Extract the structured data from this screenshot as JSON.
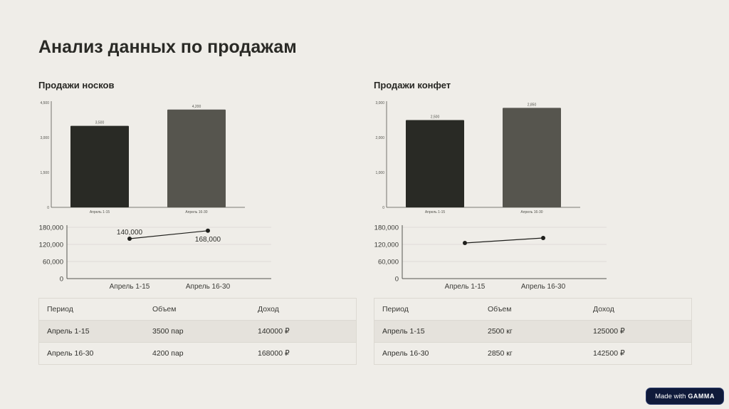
{
  "page": {
    "title": "Анализ данных по продажам"
  },
  "panels": [
    {
      "title": "Продажи носков",
      "bar_chart": {
        "y_ticks": [
          "4,500",
          "3,000",
          "1,500",
          "0"
        ],
        "categories": [
          "Апрель 1-15",
          "Апрель 16-30"
        ],
        "value_labels": [
          "3,500",
          "4,200"
        ]
      },
      "line_chart": {
        "y_ticks": [
          "180,000",
          "120,000",
          "60,000",
          "0"
        ],
        "categories": [
          "Апрель 1-15",
          "Апрель 16-30"
        ],
        "point_labels": [
          "140,000",
          "168,000"
        ]
      },
      "table": {
        "headers": [
          "Период",
          "Объем",
          "Доход"
        ],
        "rows": [
          [
            "Апрель 1-15",
            "3500 пар",
            "140000 ₽"
          ],
          [
            "Апрель 16-30",
            "4200 пар",
            "168000 ₽"
          ]
        ]
      }
    },
    {
      "title": "Продажи конфет",
      "bar_chart": {
        "y_ticks": [
          "3,000",
          "2,000",
          "1,000",
          "0"
        ],
        "categories": [
          "Апрель 1-15",
          "Апрель 16-30"
        ],
        "value_labels": [
          "2,500",
          "2,850"
        ]
      },
      "line_chart": {
        "y_ticks": [
          "180,000",
          "120,000",
          "60,000",
          "0"
        ],
        "categories": [
          "Апрель 1-15",
          "Апрель 16-30"
        ]
      },
      "table": {
        "headers": [
          "Период",
          "Объем",
          "Доход"
        ],
        "rows": [
          [
            "Апрель 1-15",
            "2500 кг",
            "125000 ₽"
          ],
          [
            "Апрель 16-30",
            "2850 кг",
            "142500 ₽"
          ]
        ]
      }
    }
  ],
  "chart_data": [
    {
      "type": "bar",
      "categories": [
        "Апрель 1-15",
        "Апрель 16-30"
      ],
      "values": [
        3500,
        4200
      ],
      "ylim": [
        0,
        4500
      ],
      "colors": [
        "#292a25",
        "#56554e"
      ],
      "grid": false
    },
    {
      "type": "line",
      "categories": [
        "Апрель 1-15",
        "Апрель 16-30"
      ],
      "values": [
        140000,
        168000
      ],
      "ylim": [
        0,
        180000
      ],
      "grid": true,
      "color": "#1e1e1b"
    },
    {
      "type": "bar",
      "categories": [
        "Апрель 1-15",
        "Апрель 16-30"
      ],
      "values": [
        2500,
        2850
      ],
      "ylim": [
        0,
        3000
      ],
      "colors": [
        "#292a25",
        "#56554e"
      ],
      "grid": false
    },
    {
      "type": "line",
      "categories": [
        "Апрель 1-15",
        "Апрель 16-30"
      ],
      "values": [
        125000,
        142500
      ],
      "ylim": [
        0,
        180000
      ],
      "grid": true,
      "color": "#1e1e1b"
    }
  ],
  "badge": {
    "prefix": "Made with",
    "brand": "GAMMA"
  }
}
